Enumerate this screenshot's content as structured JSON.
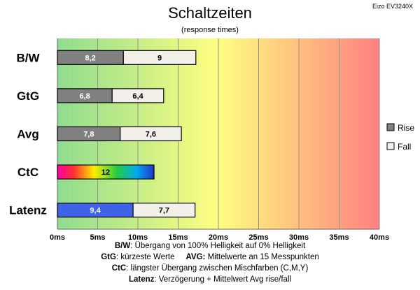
{
  "header": {
    "title": "Schaltzeiten",
    "subtitle": "(response times)",
    "model": "Eizo EV3240X"
  },
  "chart_data": {
    "type": "bar",
    "orientation": "horizontal",
    "stacked": true,
    "categories": [
      "B/W",
      "GtG",
      "Avg",
      "CtC",
      "Latenz"
    ],
    "series": [
      {
        "name": "Rise",
        "color": "#808080",
        "values": [
          8.2,
          6.8,
          7.8,
          12,
          9.4
        ]
      },
      {
        "name": "Fall",
        "color": "#f2f0e8",
        "values": [
          9,
          6.4,
          7.6,
          null,
          7.7
        ]
      }
    ],
    "bar_labels": [
      [
        "8,2",
        "9"
      ],
      [
        "6,8",
        "6,4"
      ],
      [
        "7,8",
        "7,6"
      ],
      [
        "12",
        ""
      ],
      [
        "9,4",
        "7,7"
      ]
    ],
    "special_fills": {
      "CtC": "rainbow",
      "Latenz": "#3f63e6"
    },
    "xlim": [
      0,
      40
    ],
    "x_ticks": [
      0,
      5,
      10,
      15,
      20,
      25,
      30,
      35,
      40
    ],
    "x_tick_labels": [
      "0ms",
      "5ms",
      "10ms",
      "15ms",
      "20ms",
      "25ms",
      "30ms",
      "35ms",
      "40ms"
    ],
    "background_gradient": [
      "#8fdc8f",
      "#ffff80",
      "#ff8080"
    ],
    "grid": true,
    "legend_position": "right"
  },
  "notes": {
    "bw_key": "B/W",
    "bw_text": ":  Übergang von 100% Helligkeit auf 0% Helligkeit",
    "gtg_key": "GtG",
    "gtg_text": ": kürzeste  Werte",
    "avg_key": "AVG:",
    "avg_text": " Mittelwerte  an 15 Messpunkten",
    "ctc_key": "CtC",
    "ctc_text": ": längster Übergang  zwischen Mischfarben (C,M,Y)",
    "latenz_key": "Latenz",
    "latenz_text": ": Verzögerung  + Mittelwert Avg rise/fall"
  }
}
